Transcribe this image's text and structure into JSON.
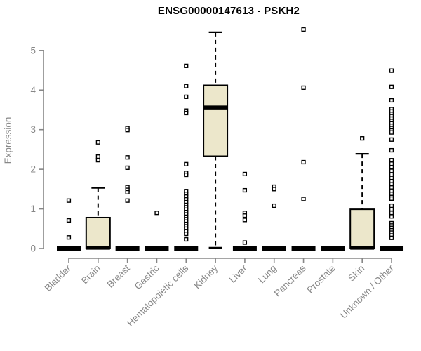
{
  "chart_data": {
    "type": "boxplot",
    "title": "ENSG00000147613 - PSKH2",
    "ylabel": "Expression",
    "yticks": [
      0,
      1,
      2,
      3,
      4,
      5
    ],
    "ylim": [
      0,
      5.6
    ],
    "grid": false,
    "legend": false,
    "x_label_rotation": -45,
    "colors": {
      "box_fill": "#ECE7CB",
      "box_stroke": "#000000",
      "axis": "#878787",
      "label": "#878787",
      "title": "#000000",
      "outlier_fill": "#ffffff"
    },
    "categories": [
      "Bladder",
      "Brain",
      "Breast",
      "Gastric",
      "Hematopoietic cells",
      "Kidney",
      "Liver",
      "Lung",
      "Pancreas",
      "Prostate",
      "Skin",
      "Unknown / Other"
    ],
    "boxes": [
      {
        "category": "Bladder",
        "low": 0,
        "q1": 0,
        "median": 0,
        "q3": 0,
        "high": 0,
        "outliers": [
          1.21,
          0.71,
          0.28
        ]
      },
      {
        "category": "Brain",
        "low": 0,
        "q1": 0,
        "median": 0.02,
        "q3": 0.78,
        "high": 1.53,
        "outliers": [
          2.68,
          2.32,
          2.23
        ]
      },
      {
        "category": "Breast",
        "low": 0,
        "q1": 0,
        "median": 0,
        "q3": 0,
        "high": 0,
        "outliers": [
          3.04,
          2.99,
          2.3,
          2.04,
          1.55,
          1.48,
          1.42,
          1.21
        ]
      },
      {
        "category": "Gastric",
        "low": 0,
        "q1": 0,
        "median": 0,
        "q3": 0,
        "high": 0,
        "outliers": [
          0.9
        ]
      },
      {
        "category": "Hematopoietic cells",
        "low": 0,
        "q1": 0,
        "median": 0,
        "q3": 0,
        "high": 0,
        "outliers": [
          4.61,
          4.1,
          3.83,
          3.48,
          3.42,
          2.13,
          1.91,
          1.86,
          1.45,
          1.38,
          1.31,
          1.24,
          1.17,
          1.1,
          1.04,
          0.98,
          0.92,
          0.86,
          0.8,
          0.74,
          0.68,
          0.62,
          0.56,
          0.5,
          0.44,
          0.37,
          0.23
        ]
      },
      {
        "category": "Kidney",
        "low": 0.02,
        "q1": 2.33,
        "median": 3.56,
        "q3": 4.12,
        "high": 5.46,
        "outliers": []
      },
      {
        "category": "Liver",
        "low": 0,
        "q1": 0,
        "median": 0,
        "q3": 0,
        "high": 0,
        "outliers": [
          1.88,
          1.47,
          0.9,
          0.83,
          0.72,
          0.15
        ]
      },
      {
        "category": "Lung",
        "low": 0,
        "q1": 0,
        "median": 0,
        "q3": 0,
        "high": 0,
        "outliers": [
          1.56,
          1.5,
          1.08
        ]
      },
      {
        "category": "Pancreas",
        "low": 0,
        "q1": 0,
        "median": 0,
        "q3": 0,
        "high": 0,
        "outliers": [
          5.53,
          4.06,
          2.18,
          1.25
        ]
      },
      {
        "category": "Prostate",
        "low": 0,
        "q1": 0,
        "median": 0,
        "q3": 0,
        "high": 0,
        "outliers": []
      },
      {
        "category": "Skin",
        "low": 0,
        "q1": 0,
        "median": 0.02,
        "q3": 0.99,
        "high": 2.39,
        "outliers": [
          2.78
        ]
      },
      {
        "category": "Unknown / Other",
        "low": 0,
        "q1": 0,
        "median": 0,
        "q3": 0,
        "high": 0,
        "outliers": [
          4.49,
          4.08,
          3.74,
          3.52,
          3.46,
          3.4,
          3.34,
          3.28,
          3.22,
          3.16,
          3.1,
          3.04,
          2.98,
          2.93,
          2.75,
          2.48,
          2.23,
          2.14,
          2.05,
          1.96,
          1.87,
          1.78,
          1.7,
          1.62,
          1.54,
          1.46,
          1.38,
          1.3,
          1.26,
          1.08,
          0.99,
          0.9,
          0.81,
          0.64,
          0.58,
          0.52,
          0.46,
          0.4,
          0.33,
          0.27
        ]
      }
    ]
  }
}
